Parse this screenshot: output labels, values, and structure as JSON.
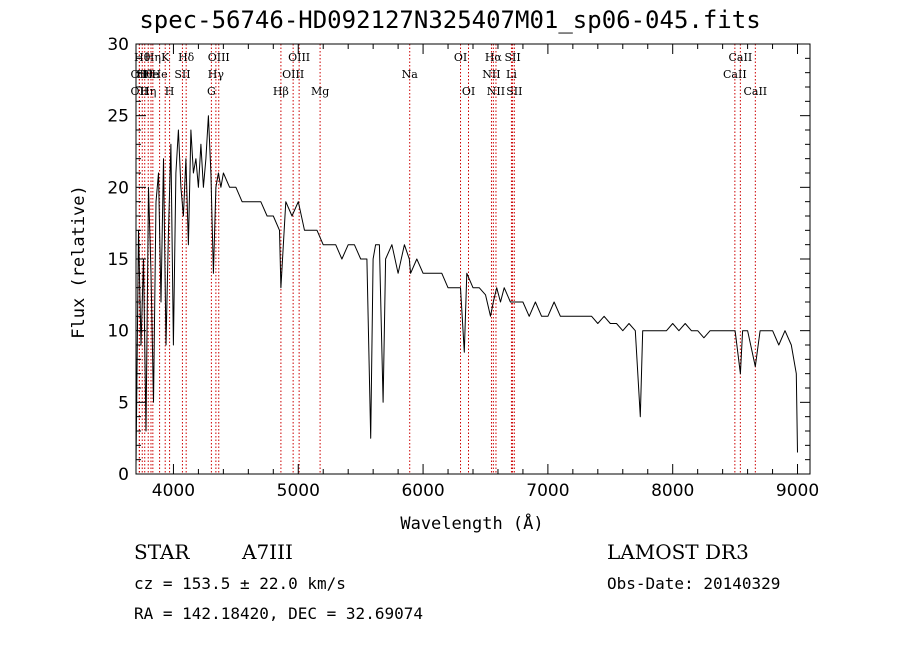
{
  "chart_data": {
    "type": "line",
    "title": "spec-56746-HD092127N325407M01_sp06-045.fits",
    "xlabel": "Wavelength (Å)",
    "ylabel": "Flux (relative)",
    "xlim": [
      3700,
      9100
    ],
    "ylim": [
      0,
      30
    ],
    "xticks": [
      4000,
      5000,
      6000,
      7000,
      8000,
      9000
    ],
    "yticks": [
      0,
      5,
      10,
      15,
      20,
      25,
      30
    ],
    "line_color": "#000000",
    "marker_color": "#cc0000",
    "series": [
      {
        "name": "flux",
        "x": [
          3700,
          3720,
          3740,
          3760,
          3780,
          3800,
          3820,
          3840,
          3860,
          3880,
          3900,
          3920,
          3940,
          3960,
          3980,
          4000,
          4020,
          4040,
          4060,
          4080,
          4100,
          4120,
          4140,
          4160,
          4180,
          4200,
          4220,
          4240,
          4260,
          4280,
          4300,
          4320,
          4340,
          4360,
          4380,
          4400,
          4450,
          4500,
          4550,
          4600,
          4650,
          4700,
          4750,
          4800,
          4850,
          4861,
          4900,
          4950,
          5000,
          5050,
          5100,
          5150,
          5200,
          5250,
          5300,
          5350,
          5400,
          5450,
          5500,
          5550,
          5580,
          5600,
          5620,
          5650,
          5680,
          5700,
          5750,
          5800,
          5850,
          5890,
          5900,
          5950,
          6000,
          6050,
          6100,
          6150,
          6200,
          6250,
          6300,
          6330,
          6350,
          6400,
          6450,
          6500,
          6540,
          6563,
          6590,
          6620,
          6650,
          6700,
          6750,
          6800,
          6850,
          6900,
          6950,
          7000,
          7050,
          7100,
          7150,
          7200,
          7250,
          7300,
          7350,
          7400,
          7450,
          7500,
          7550,
          7600,
          7650,
          7700,
          7740,
          7760,
          7780,
          7800,
          7850,
          7900,
          7950,
          8000,
          8050,
          8100,
          8150,
          8200,
          8250,
          8300,
          8350,
          8400,
          8450,
          8500,
          8542,
          8560,
          8600,
          8662,
          8700,
          8750,
          8800,
          8850,
          8900,
          8950,
          8990,
          9000
        ],
        "y": [
          0.5,
          17,
          9,
          15,
          3,
          20,
          14,
          5,
          19,
          21,
          12,
          22,
          9,
          17,
          23,
          9,
          21,
          24,
          20,
          18,
          22,
          16,
          24,
          21,
          22,
          20,
          23,
          20,
          22,
          25,
          21,
          14,
          20,
          21,
          20,
          21,
          20,
          20,
          19,
          19,
          19,
          19,
          18,
          18,
          17,
          13,
          19,
          18,
          19,
          17,
          17,
          17,
          16,
          16,
          16,
          15,
          16,
          16,
          15,
          15,
          2.5,
          15,
          16,
          16,
          5,
          15,
          16,
          14,
          16,
          15,
          14,
          15,
          14,
          14,
          14,
          14,
          13,
          13,
          13,
          8.5,
          14,
          13,
          13,
          12.5,
          11,
          12,
          13,
          12,
          13,
          12,
          12,
          12,
          11,
          12,
          11,
          11,
          12,
          11,
          11,
          11,
          11,
          11,
          11,
          10.5,
          11,
          10.5,
          10.5,
          10,
          10.5,
          10,
          4,
          10,
          10,
          10,
          10,
          10,
          10,
          10.5,
          10,
          10.5,
          10,
          10,
          9.5,
          10,
          10,
          10,
          10,
          10,
          7,
          10,
          10,
          7.5,
          10,
          10,
          10,
          9,
          10,
          9,
          7,
          1.5
        ]
      }
    ],
    "line_markers": [
      {
        "x": 3727,
        "label": "OII",
        "row": 2
      },
      {
        "x": 3727,
        "label": "OII",
        "row": 3
      },
      {
        "x": 3750,
        "label": "Hθ",
        "row": 1
      },
      {
        "x": 3770,
        "label": "Hθ",
        "row": 2
      },
      {
        "x": 3798,
        "label": "Hη",
        "row": 3
      },
      {
        "x": 3820,
        "label": "He",
        "row": 2
      },
      {
        "x": 3835,
        "label": "Hη",
        "row": 1
      },
      {
        "x": 3889,
        "label": "He",
        "row": 2
      },
      {
        "x": 3934,
        "label": "K",
        "row": 1
      },
      {
        "x": 3969,
        "label": "H",
        "row": 3
      },
      {
        "x": 4072,
        "label": "SII",
        "row": 2
      },
      {
        "x": 4102,
        "label": "Hδ",
        "row": 1
      },
      {
        "x": 4304,
        "label": "G",
        "row": 3
      },
      {
        "x": 4340,
        "label": "Hγ",
        "row": 2
      },
      {
        "x": 4363,
        "label": "OIII",
        "row": 1
      },
      {
        "x": 4861,
        "label": "Hβ",
        "row": 3
      },
      {
        "x": 4959,
        "label": "OIII",
        "row": 2
      },
      {
        "x": 5007,
        "label": "OIII",
        "row": 1
      },
      {
        "x": 5175,
        "label": "Mg",
        "row": 3
      },
      {
        "x": 5893,
        "label": "Na",
        "row": 2
      },
      {
        "x": 6300,
        "label": "OI",
        "row": 1
      },
      {
        "x": 6364,
        "label": "OI",
        "row": 3
      },
      {
        "x": 6548,
        "label": "NII",
        "row": 2
      },
      {
        "x": 6563,
        "label": "Hα",
        "row": 1
      },
      {
        "x": 6584,
        "label": "NII",
        "row": 3
      },
      {
        "x": 6708,
        "label": "Li",
        "row": 2
      },
      {
        "x": 6717,
        "label": "SII",
        "row": 1
      },
      {
        "x": 6731,
        "label": "SII",
        "row": 3
      },
      {
        "x": 8498,
        "label": "CaII",
        "row": 2
      },
      {
        "x": 8542,
        "label": "CaII",
        "row": 1
      },
      {
        "x": 8662,
        "label": "CaII",
        "row": 3
      }
    ]
  },
  "info": {
    "object_class": "STAR",
    "subclass": "A7III",
    "survey": "LAMOST DR3",
    "redshift": "cz = 153.5 ± 22.0 km/s",
    "obs_date": "Obs-Date: 20140329",
    "coords": "RA = 142.18420, DEC =  32.69074"
  }
}
